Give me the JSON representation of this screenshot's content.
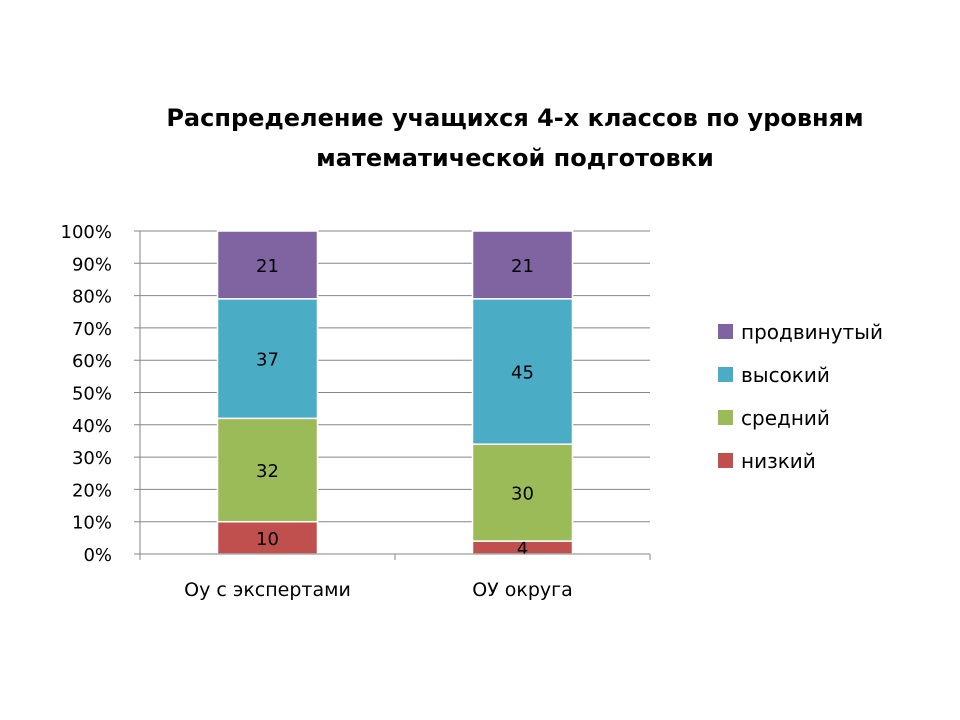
{
  "chart_data": {
    "type": "bar",
    "stacked": true,
    "normalized": true,
    "title_lines": [
      "Распределение учащихся 4-х классов по уровням",
      "математической подготовки"
    ],
    "categories": [
      "Оу с экспертами",
      "ОУ округа"
    ],
    "series": [
      {
        "name": "низкий",
        "color": "#c0504d",
        "values": [
          10,
          4
        ]
      },
      {
        "name": "средний",
        "color": "#9bbb59",
        "values": [
          32,
          30
        ]
      },
      {
        "name": "высокий",
        "color": "#4bacc6",
        "values": [
          37,
          45
        ]
      },
      {
        "name": "продвинутый",
        "color": "#8064a2",
        "values": [
          21,
          21
        ]
      }
    ],
    "legend_order": [
      "продвинутый",
      "высокий",
      "средний",
      "низкий"
    ],
    "yticks": [
      "0%",
      "10%",
      "20%",
      "30%",
      "40%",
      "50%",
      "60%",
      "70%",
      "80%",
      "90%",
      "100%"
    ],
    "ylim": [
      0,
      100
    ],
    "grid": true,
    "legend_position": "right"
  }
}
